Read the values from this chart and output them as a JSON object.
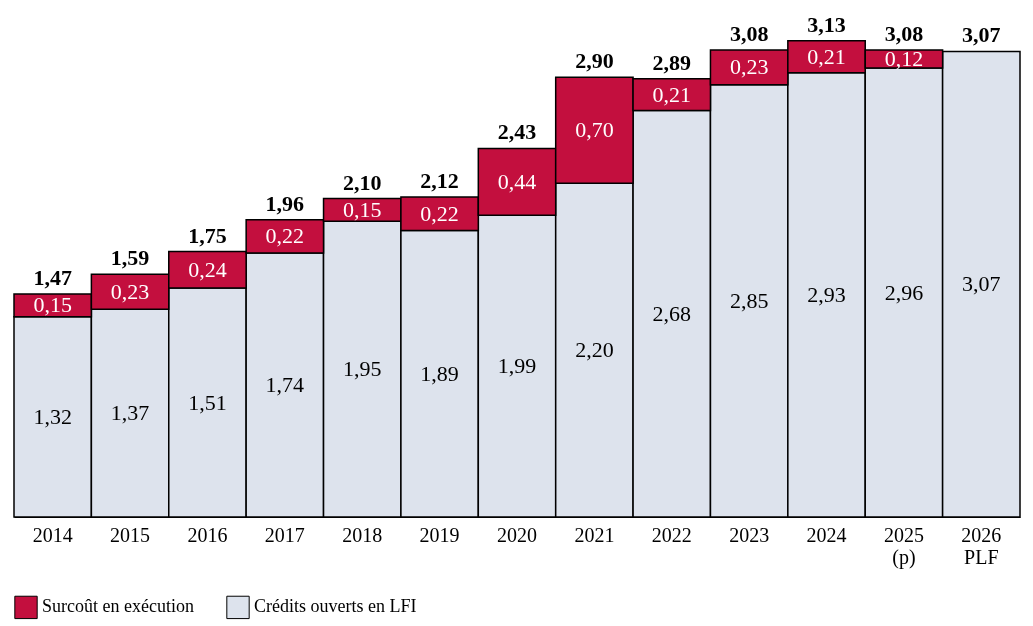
{
  "chart_data": {
    "type": "bar",
    "stacked": true,
    "categories": [
      "2014",
      "2015",
      "2016",
      "2017",
      "2018",
      "2019",
      "2020",
      "2021",
      "2022",
      "2023",
      "2024",
      "2025\n(p)",
      "2026\nPLF"
    ],
    "series": [
      {
        "name": "Crédits ouverts en LFI",
        "color": "#dde3ed",
        "values": [
          1.32,
          1.37,
          1.51,
          1.74,
          1.95,
          1.89,
          1.99,
          2.2,
          2.68,
          2.85,
          2.93,
          2.96,
          3.07
        ],
        "value_labels": [
          "1,32",
          "1,37",
          "1,51",
          "1,74",
          "1,95",
          "1,89",
          "1,99",
          "2,20",
          "2,68",
          "2,85",
          "2,93",
          "2,96",
          "3,07"
        ]
      },
      {
        "name": "Surcoût en exécution",
        "color": "#c30f3e",
        "values": [
          0.15,
          0.23,
          0.24,
          0.22,
          0.15,
          0.22,
          0.44,
          0.7,
          0.21,
          0.23,
          0.21,
          0.12,
          null
        ],
        "value_labels": [
          "0,15",
          "0,23",
          "0,24",
          "0,22",
          "0,15",
          "0,22",
          "0,44",
          "0,70",
          "0,21",
          "0,23",
          "0,21",
          "0,12",
          null
        ]
      }
    ],
    "totals": [
      "1,47",
      "1,59",
      "1,75",
      "1,96",
      "2,10",
      "2,12",
      "2,43",
      "2,90",
      "2,89",
      "3,08",
      "3,13",
      "3,08",
      "3,07"
    ],
    "legend": "bottom"
  }
}
